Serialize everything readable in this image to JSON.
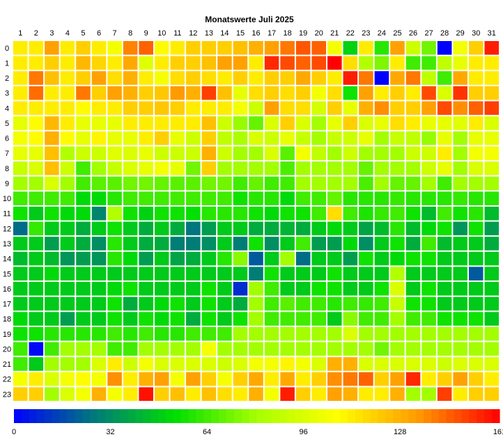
{
  "chart_data": {
    "type": "heatmap",
    "title": "Monatswerte Juli 2025",
    "x_categories": [
      "1",
      "2",
      "3",
      "4",
      "5",
      "6",
      "7",
      "8",
      "9",
      "10",
      "11",
      "12",
      "13",
      "14",
      "15",
      "16",
      "17",
      "18",
      "19",
      "20",
      "21",
      "22",
      "23",
      "24",
      "25",
      "26",
      "27",
      "28",
      "29",
      "30",
      "31"
    ],
    "y_categories": [
      "0",
      "1",
      "2",
      "3",
      "4",
      "5",
      "6",
      "7",
      "8",
      "9",
      "10",
      "11",
      "12",
      "13",
      "14",
      "15",
      "16",
      "17",
      "18",
      "19",
      "20",
      "21",
      "22",
      "23"
    ],
    "value_range": [
      0,
      161
    ],
    "colorbar_ticks": [
      0,
      32,
      64,
      96,
      128,
      161
    ],
    "colorscale": [
      "#0000ff",
      "#007a7a",
      "#00e000",
      "#a6ff00",
      "#ffff00",
      "#ff9900",
      "#ff0000"
    ],
    "grid": true,
    "legend_position": "bottom",
    "values": [
      [
        112,
        112,
        132,
        112,
        120,
        112,
        104,
        138,
        144,
        108,
        112,
        120,
        120,
        120,
        124,
        128,
        132,
        140,
        146,
        144,
        104,
        50,
        112,
        60,
        132,
        92,
        72,
        0,
        104,
        120,
        156
      ],
      [
        112,
        112,
        120,
        112,
        126,
        118,
        112,
        130,
        98,
        112,
        120,
        120,
        124,
        132,
        132,
        112,
        154,
        148,
        144,
        148,
        164,
        116,
        84,
        74,
        112,
        64,
        64,
        88,
        100,
        112,
        112
      ],
      [
        112,
        140,
        124,
        112,
        120,
        132,
        116,
        128,
        112,
        104,
        116,
        120,
        116,
        112,
        120,
        112,
        120,
        120,
        130,
        120,
        112,
        156,
        140,
        0,
        130,
        140,
        88,
        64,
        130,
        112,
        112
      ],
      [
        112,
        142,
        112,
        112,
        140,
        120,
        132,
        128,
        120,
        122,
        134,
        128,
        150,
        124,
        100,
        116,
        120,
        116,
        120,
        104,
        116,
        56,
        132,
        112,
        120,
        112,
        148,
        96,
        152,
        120,
        120
      ],
      [
        112,
        112,
        112,
        112,
        108,
        112,
        112,
        120,
        120,
        122,
        120,
        112,
        112,
        112,
        104,
        92,
        132,
        116,
        116,
        94,
        120,
        100,
        128,
        136,
        120,
        120,
        132,
        148,
        136,
        144,
        150
      ],
      [
        100,
        108,
        126,
        112,
        100,
        100,
        100,
        112,
        112,
        112,
        112,
        112,
        124,
        92,
        78,
        70,
        96,
        120,
        96,
        80,
        100,
        120,
        96,
        100,
        116,
        112,
        100,
        100,
        98,
        112,
        96
      ],
      [
        104,
        108,
        128,
        108,
        100,
        110,
        100,
        100,
        112,
        120,
        100,
        92,
        120,
        88,
        82,
        96,
        92,
        100,
        90,
        80,
        90,
        92,
        100,
        80,
        90,
        88,
        78,
        100,
        80,
        100,
        100
      ],
      [
        100,
        100,
        124,
        84,
        92,
        92,
        98,
        96,
        100,
        92,
        92,
        92,
        128,
        92,
        80,
        80,
        96,
        68,
        104,
        88,
        80,
        92,
        80,
        80,
        80,
        92,
        92,
        112,
        80,
        104,
        104
      ],
      [
        90,
        96,
        124,
        92,
        64,
        80,
        90,
        96,
        100,
        104,
        100,
        72,
        120,
        80,
        80,
        80,
        80,
        66,
        80,
        80,
        80,
        80,
        70,
        80,
        80,
        80,
        92,
        100,
        80,
        96,
        96
      ],
      [
        80,
        80,
        96,
        80,
        64,
        68,
        68,
        72,
        72,
        70,
        68,
        68,
        72,
        72,
        64,
        70,
        64,
        64,
        80,
        80,
        80,
        80,
        66,
        80,
        70,
        70,
        80,
        64,
        80,
        80,
        80
      ],
      [
        64,
        64,
        64,
        64,
        52,
        52,
        60,
        64,
        64,
        64,
        64,
        64,
        64,
        64,
        56,
        60,
        60,
        52,
        64,
        64,
        70,
        60,
        60,
        60,
        62,
        60,
        60,
        60,
        62,
        60,
        60
      ],
      [
        56,
        48,
        56,
        52,
        52,
        30,
        84,
        56,
        50,
        56,
        56,
        54,
        60,
        60,
        60,
        56,
        52,
        56,
        56,
        64,
        116,
        64,
        58,
        62,
        64,
        56,
        44,
        64,
        56,
        60,
        44
      ],
      [
        24,
        62,
        48,
        48,
        40,
        48,
        56,
        48,
        40,
        48,
        40,
        26,
        36,
        48,
        48,
        40,
        40,
        42,
        40,
        48,
        52,
        48,
        38,
        44,
        60,
        44,
        52,
        56,
        34,
        56,
        36
      ],
      [
        48,
        48,
        36,
        48,
        40,
        32,
        60,
        48,
        40,
        40,
        28,
        28,
        32,
        48,
        28,
        56,
        32,
        48,
        64,
        36,
        36,
        52,
        32,
        48,
        56,
        40,
        64,
        44,
        48,
        48,
        40
      ],
      [
        44,
        48,
        44,
        34,
        36,
        34,
        60,
        52,
        36,
        48,
        38,
        40,
        48,
        60,
        76,
        20,
        48,
        80,
        24,
        48,
        48,
        36,
        56,
        48,
        52,
        56,
        56,
        48,
        48,
        48,
        48
      ],
      [
        48,
        48,
        52,
        48,
        48,
        48,
        48,
        48,
        48,
        48,
        48,
        48,
        48,
        48,
        48,
        28,
        56,
        48,
        48,
        48,
        56,
        48,
        48,
        48,
        84,
        48,
        48,
        48,
        48,
        20,
        48
      ],
      [
        48,
        48,
        48,
        48,
        48,
        48,
        52,
        56,
        48,
        48,
        48,
        48,
        56,
        48,
        10,
        80,
        64,
        48,
        48,
        56,
        56,
        48,
        48,
        56,
        96,
        48,
        56,
        48,
        48,
        48,
        48
      ],
      [
        48,
        48,
        48,
        48,
        48,
        48,
        56,
        40,
        48,
        52,
        56,
        48,
        56,
        48,
        40,
        80,
        64,
        68,
        64,
        64,
        60,
        64,
        62,
        64,
        90,
        56,
        56,
        48,
        48,
        48,
        48
      ],
      [
        52,
        48,
        48,
        36,
        48,
        48,
        56,
        48,
        56,
        52,
        56,
        40,
        56,
        48,
        56,
        80,
        64,
        64,
        64,
        64,
        48,
        76,
        64,
        64,
        80,
        64,
        64,
        56,
        56,
        56,
        48
      ],
      [
        56,
        56,
        60,
        60,
        60,
        60,
        64,
        60,
        64,
        60,
        60,
        64,
        64,
        64,
        80,
        80,
        80,
        80,
        80,
        80,
        80,
        96,
        80,
        80,
        80,
        80,
        80,
        80,
        80,
        80,
        80
      ],
      [
        64,
        2,
        64,
        80,
        80,
        80,
        64,
        64,
        80,
        80,
        80,
        80,
        104,
        80,
        80,
        80,
        80,
        80,
        80,
        80,
        80,
        80,
        80,
        72,
        80,
        80,
        80,
        80,
        80,
        80,
        80
      ],
      [
        64,
        48,
        80,
        80,
        80,
        96,
        112,
        92,
        104,
        96,
        96,
        96,
        96,
        92,
        96,
        104,
        104,
        110,
        104,
        96,
        128,
        128,
        96,
        96,
        96,
        96,
        96,
        92,
        96,
        96,
        96
      ],
      [
        104,
        112,
        96,
        104,
        108,
        104,
        136,
        112,
        128,
        132,
        104,
        132,
        120,
        104,
        120,
        130,
        112,
        130,
        112,
        120,
        136,
        140,
        144,
        120,
        132,
        154,
        112,
        120,
        132,
        120,
        112
      ],
      [
        120,
        120,
        80,
        96,
        104,
        128,
        104,
        112,
        158,
        120,
        124,
        112,
        124,
        116,
        112,
        128,
        104,
        156,
        120,
        112,
        132,
        128,
        112,
        112,
        128,
        80,
        80,
        150,
        112,
        120,
        120
      ]
    ]
  }
}
